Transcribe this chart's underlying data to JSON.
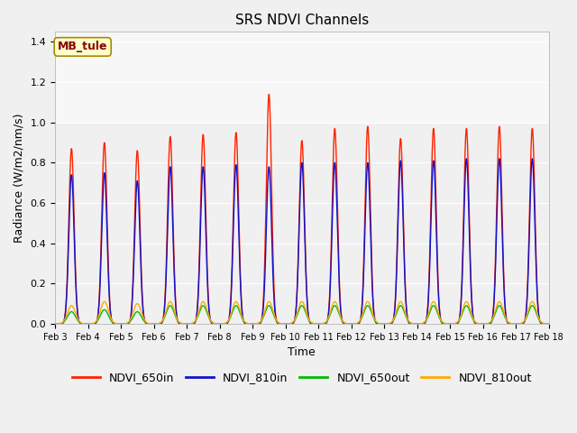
{
  "title": "SRS NDVI Channels",
  "xlabel": "Time",
  "ylabel": "Radiance (W/m2/nm/s)",
  "annotation": "MB_tule",
  "ylim": [
    0,
    1.45
  ],
  "xlim_days": [
    3,
    18
  ],
  "legend_items": [
    "NDVI_650in",
    "NDVI_810in",
    "NDVI_650out",
    "NDVI_810out"
  ],
  "legend_colors": [
    "#ff2200",
    "#1111cc",
    "#00bb00",
    "#ffaa00"
  ],
  "peak_650in": [
    0.87,
    0.9,
    0.86,
    0.93,
    0.94,
    0.95,
    1.14,
    0.91,
    0.97,
    0.98,
    0.92,
    0.97,
    0.97,
    0.98,
    0.97
  ],
  "peak_810in": [
    0.74,
    0.75,
    0.71,
    0.78,
    0.78,
    0.79,
    0.78,
    0.8,
    0.8,
    0.8,
    0.81,
    0.81,
    0.82,
    0.82,
    0.82
  ],
  "peak_650out": [
    0.06,
    0.07,
    0.06,
    0.09,
    0.09,
    0.09,
    0.09,
    0.09,
    0.09,
    0.09,
    0.09,
    0.09,
    0.09,
    0.09,
    0.09
  ],
  "peak_810out": [
    0.09,
    0.11,
    0.1,
    0.11,
    0.11,
    0.11,
    0.11,
    0.11,
    0.11,
    0.11,
    0.11,
    0.11,
    0.11,
    0.11,
    0.11
  ],
  "tick_positions": [
    3,
    4,
    5,
    6,
    7,
    8,
    9,
    10,
    11,
    12,
    13,
    14,
    15,
    16,
    17,
    18
  ],
  "tick_labels": [
    "Feb 3",
    "Feb 4",
    "Feb 5",
    "Feb 6",
    "Feb 7",
    "Feb 8",
    "Feb 9",
    "Feb 10",
    "Feb 11",
    "Feb 12",
    "Feb 13",
    "Feb 14",
    "Feb 15",
    "Feb 16",
    "Feb 17",
    "Feb 18"
  ],
  "colors": {
    "650in": "#ff2200",
    "810in": "#1111cc",
    "650out": "#00bb00",
    "810out": "#ffaa00"
  },
  "sigma_main": 0.08,
  "sigma_small": 0.12
}
